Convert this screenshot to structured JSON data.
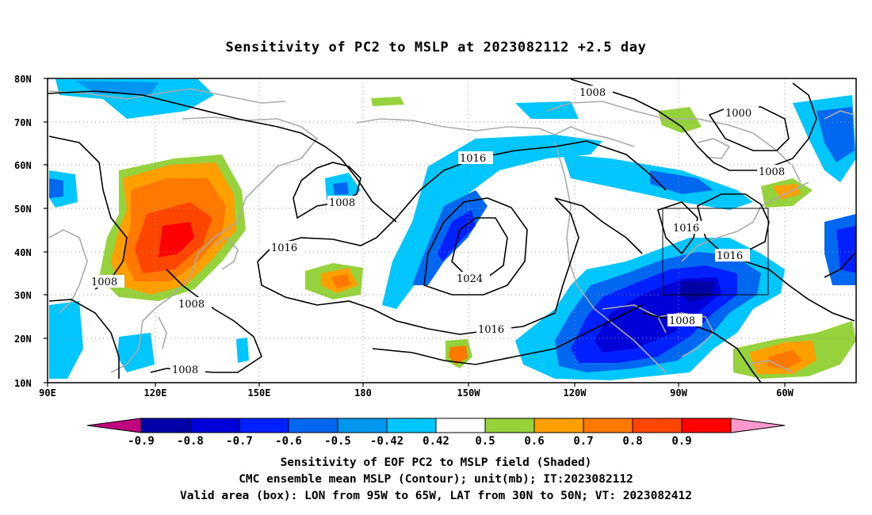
{
  "title": "Sensitivity of PC2 to MSLP at 2023082112 +2.5 day",
  "map": {
    "lat_labels": [
      "80N",
      "70N",
      "60N",
      "50N",
      "40N",
      "30N",
      "20N",
      "10N"
    ],
    "lon_labels": [
      "90E",
      "120E",
      "150E",
      "180",
      "150W",
      "120W",
      "90W",
      "60W"
    ],
    "contour_labels": [
      "1008",
      "1000",
      "1008",
      "1016",
      "1008",
      "1016",
      "1024",
      "1016",
      "1016",
      "1016",
      "1008",
      "1008",
      "1008",
      "1008"
    ],
    "valid_box": {
      "lon_from": "95W",
      "lon_to": "65W",
      "lat_from": "30N",
      "lat_to": "50N"
    }
  },
  "colorbar": {
    "labels": [
      "-0.9",
      "-0.8",
      "-0.7",
      "-0.6",
      "-0.5",
      "-0.42",
      "0.42",
      "0.5",
      "0.6",
      "0.7",
      "0.8",
      "0.9"
    ],
    "colors": [
      "#c0047f",
      "#0000a6",
      "#0000d9",
      "#0020ff",
      "#0068f0",
      "#0096f0",
      "#00c6ff",
      "#ffffff",
      "#96d23c",
      "#ffa000",
      "#ff7800",
      "#ff4600",
      "#ff0000",
      "#ff99cc"
    ]
  },
  "caption": {
    "line1": "Sensitivity of EOF PC2 to MSLP field (Shaded)",
    "line2": "CMC ensemble mean MSLP (Contour); unit(mb); IT:2023082112",
    "line3": "Valid area (box): LON from 95W to 65W, LAT from 30N to 50N; VT: 2023082412"
  }
}
